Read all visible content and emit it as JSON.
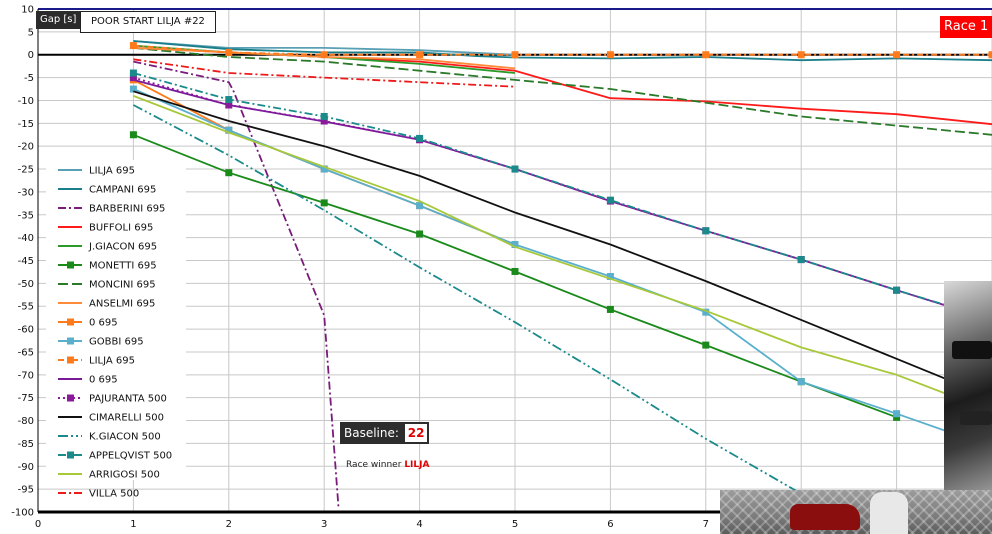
{
  "header": {
    "yaxis_tag": "Gap [s]",
    "title": "POOR START LILJA  #22",
    "race_badge": "Race 1"
  },
  "annotations": {
    "baseline_label": "Baseline:",
    "baseline_number": "22",
    "winner_text": "Race winner",
    "winner_name": "LILJA"
  },
  "chart_data": {
    "type": "line",
    "title": "POOR START LILJA  #22",
    "ylabel": "Gap [s]",
    "xlim": [
      0,
      10
    ],
    "ylim": [
      -100,
      10
    ],
    "x_ticks": [
      0,
      1,
      2,
      3,
      4,
      5,
      6,
      7
    ],
    "y_ticks": [
      10,
      5,
      0,
      -5,
      -10,
      -15,
      -20,
      -25,
      -30,
      -35,
      -40,
      -45,
      -50,
      -55,
      -60,
      -65,
      -70,
      -75,
      -80,
      -85,
      -90,
      -95,
      -100
    ],
    "grid": true,
    "legend_position": "left",
    "series": [
      {
        "name": "LILJA 695",
        "color": "#5aa0b4",
        "dash": "solid",
        "marker": "none",
        "x": [
          1,
          2,
          3,
          4,
          5
        ],
        "y": [
          3,
          1.5,
          1.5,
          1,
          0
        ]
      },
      {
        "name": "CAMPANI 695",
        "color": "#1a7f8a",
        "dash": "solid",
        "marker": "none",
        "x": [
          1,
          2,
          3,
          4,
          4.6,
          5,
          6,
          7,
          8,
          9,
          10
        ],
        "y": [
          3,
          1.2,
          0.5,
          0.5,
          -0.3,
          -0.6,
          -0.8,
          -0.5,
          -1.2,
          -0.8,
          -1.2
        ]
      },
      {
        "name": "BARBERINI 695",
        "color": "#7a1a7a",
        "dash": "8,3,2,3",
        "marker": "none",
        "x": [
          1,
          2,
          2.05,
          3,
          3.15
        ],
        "y": [
          -1.5,
          -6,
          -8,
          -57,
          -99
        ]
      },
      {
        "name": "BUFFOLI 695",
        "color": "#ff1a1a",
        "dash": "solid",
        "marker": "none",
        "x": [
          1,
          2,
          3,
          4,
          5,
          6,
          7,
          8,
          9,
          10
        ],
        "y": [
          1.5,
          0.5,
          -0.5,
          -1.5,
          -3.5,
          -9.5,
          -10.2,
          -11.8,
          -13,
          -15.2
        ]
      },
      {
        "name": "J.GIACON 695",
        "color": "#2a9a2a",
        "dash": "solid",
        "marker": "none",
        "x": [
          1,
          2,
          3,
          4,
          5
        ],
        "y": [
          2,
          0.5,
          -0.5,
          -2,
          -4
        ]
      },
      {
        "name": "MONETTI 695",
        "color": "#1a8a1a",
        "dash": "solid",
        "marker": "square",
        "x": [
          1,
          2,
          3,
          4,
          5,
          6,
          7,
          8,
          9
        ],
        "y": [
          -17.5,
          -25.8,
          -32.4,
          -39.2,
          -47.4,
          -55.7,
          -63.5,
          -71.5,
          -79.3
        ]
      },
      {
        "name": "MONCINI 695",
        "color": "#2a7a2a",
        "dash": "10,4",
        "marker": "none",
        "x": [
          1,
          2,
          3,
          4,
          5,
          6,
          7,
          8,
          9,
          10
        ],
        "y": [
          1.5,
          -0.5,
          -1.5,
          -3.5,
          -5.5,
          -7.5,
          -10.5,
          -13.5,
          -15.5,
          -17.5
        ]
      },
      {
        "name": "ANSELMI 695",
        "color": "#ff8a3a",
        "dash": "solid",
        "marker": "none",
        "x": [
          1,
          2,
          3,
          4,
          5
        ],
        "y": [
          1.5,
          0.5,
          -0.5,
          -1,
          -3
        ]
      },
      {
        "name": "0 695",
        "color": "#ff7a1a",
        "dash": "solid",
        "marker": "square",
        "x": [
          1,
          2,
          3,
          4,
          5
        ],
        "y": [
          -5.5,
          -16.5,
          -25,
          -33,
          -41.5
        ]
      },
      {
        "name": "GOBBI 695",
        "color": "#5ab0cc",
        "dash": "solid",
        "marker": "square",
        "x": [
          1,
          2,
          3,
          4,
          5,
          6,
          7,
          8,
          9,
          10
        ],
        "y": [
          -7.5,
          -16.5,
          -25,
          -33,
          -41.5,
          -48.5,
          -56.3,
          -71.5,
          -78.5,
          -85.8
        ]
      },
      {
        "name": "LILJA 695",
        "color": "#ff7a1a",
        "dash": "6,3,2,3",
        "marker": "square",
        "x": [
          1,
          2,
          3,
          4,
          5,
          6,
          7,
          8,
          9,
          10
        ],
        "y": [
          2,
          0.5,
          0,
          0,
          0,
          0,
          0,
          0,
          0,
          0
        ]
      },
      {
        "name": "0 695",
        "color": "#7a1a9a",
        "dash": "solid",
        "marker": "none",
        "x": [
          1,
          2,
          3,
          4,
          5,
          6,
          7,
          8,
          9,
          10
        ],
        "y": [
          -5.5,
          -11,
          -14.6,
          -18.6,
          -25,
          -32,
          -38.5,
          -44.8,
          -51.5,
          -58
        ]
      },
      {
        "name": "PAJURANTA 500",
        "color": "#8a1a9a",
        "dash": "2,3",
        "marker": "square",
        "x": [
          1,
          2,
          3,
          4,
          5,
          6,
          7,
          8,
          9,
          10
        ],
        "y": [
          -5,
          -11,
          -14.5,
          -18.6,
          -25,
          -32,
          -38.5,
          -44.8,
          -51.5,
          -58
        ]
      },
      {
        "name": "CIMARELLI 500",
        "color": "#111111",
        "dash": "solid",
        "marker": "none",
        "x": [
          1,
          2,
          3,
          4,
          5,
          6,
          7,
          8,
          9,
          10
        ],
        "y": [
          -8,
          -14.5,
          -20,
          -26.5,
          -34.5,
          -41.5,
          -49.5,
          -58,
          -66.5,
          -75
        ]
      },
      {
        "name": "K.GIACON 500",
        "color": "#1a8a8a",
        "dash": "10,3,2,3,2,3",
        "marker": "none",
        "x": [
          1,
          2,
          3,
          4,
          5,
          6,
          7,
          8
        ],
        "y": [
          -11,
          -22,
          -34,
          -46.5,
          -58.5,
          -71,
          -84,
          -96
        ]
      },
      {
        "name": "APPELQVIST 500",
        "color": "#1a8a8a",
        "dash": "8,3,2,3",
        "marker": "square",
        "x": [
          1,
          2,
          3,
          4,
          5,
          6,
          7,
          8,
          9,
          10
        ],
        "y": [
          -4,
          -9.8,
          -13.5,
          -18.3,
          -25,
          -31.8,
          -38.5,
          -44.8,
          -51.5,
          -57.8
        ]
      },
      {
        "name": "ARRIGOSI 500",
        "color": "#a8c83a",
        "dash": "solid",
        "marker": "none",
        "x": [
          1,
          2,
          3,
          4,
          5,
          6,
          7,
          8,
          9,
          10
        ],
        "y": [
          -9,
          -17,
          -24.5,
          -32,
          -42,
          -49,
          -56,
          -64,
          -70,
          -78
        ]
      },
      {
        "name": "VILLA 500",
        "color": "#ee1a1a",
        "dash": "8,3,2,3",
        "marker": "none",
        "x": [
          1,
          2,
          3,
          4,
          5
        ],
        "y": [
          -1,
          -4,
          -5,
          -6,
          -7
        ]
      }
    ]
  }
}
